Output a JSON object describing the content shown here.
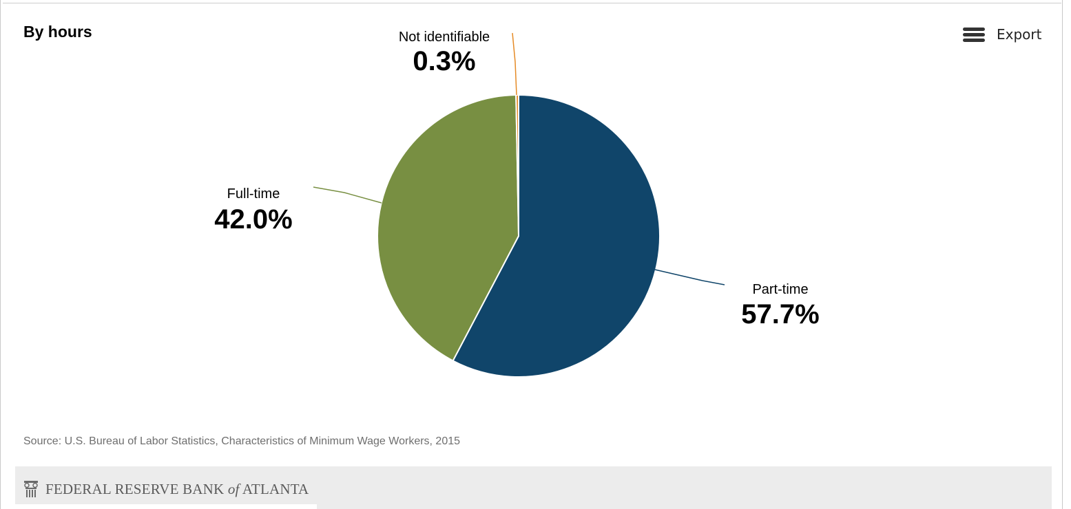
{
  "header": {
    "title": "By hours",
    "export_label": "Export"
  },
  "chart_data": {
    "type": "pie",
    "title": "By hours",
    "slices": [
      {
        "label": "Part-time",
        "value": 57.7,
        "display": "57.7%",
        "color": "#10456a"
      },
      {
        "label": "Full-time",
        "value": 42.0,
        "display": "42.0%",
        "color": "#788f42"
      },
      {
        "label": "Not identifiable",
        "value": 0.3,
        "display": "0.3%",
        "color": "#e58a25"
      }
    ]
  },
  "source": "Source: U.S. Bureau of Labor Statistics, Characteristics of Minimum Wage Workers, 2015",
  "footer": {
    "logo_main": "FEDERAL RESERVE BANK ",
    "logo_of": "of",
    "logo_end": " ATLANTA",
    "logo_icon": "column-capital-icon"
  }
}
